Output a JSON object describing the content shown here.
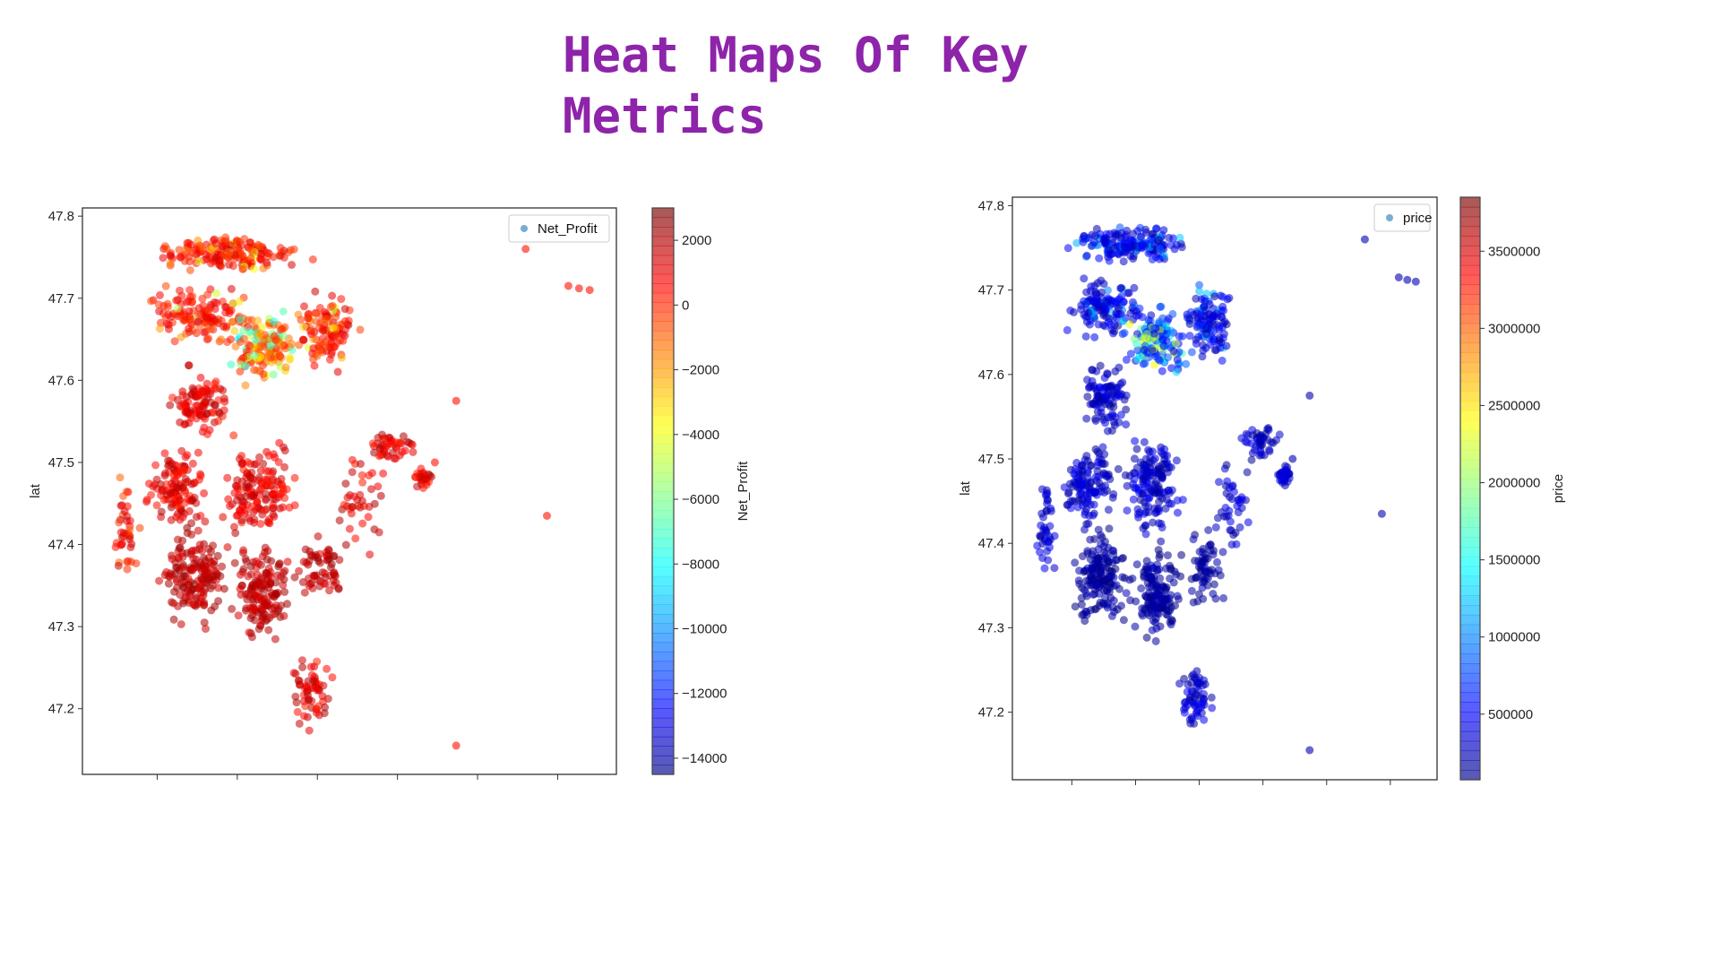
{
  "slide": {
    "title": "Heat Maps Of Key Metrics"
  },
  "colors": {
    "title": "#8e24aa"
  },
  "chart_data": [
    {
      "type": "scatter",
      "colormap": "jet",
      "ylabel": "lat",
      "xlabel": "",
      "ylim": [
        47.12,
        47.81
      ],
      "yticks": [
        47.2,
        47.3,
        47.4,
        47.5,
        47.6,
        47.7,
        47.8
      ],
      "ytick_labels": [
        "47.2",
        "47.3",
        "47.4",
        "47.5",
        "47.6",
        "47.7",
        "47.8"
      ],
      "xtick_count": 6,
      "legend": {
        "label": "Net_Profit",
        "position": "top-right"
      },
      "colorbar": {
        "label": "Net_Profit",
        "range": [
          -14500,
          3000
        ],
        "ticks": [
          2000,
          0,
          -2000,
          -4000,
          -6000,
          -8000,
          -10000,
          -12000,
          -14000
        ],
        "tick_labels": [
          "2000",
          "0",
          "−2000",
          "−4000",
          "−6000",
          "−8000",
          "−10000",
          "−12000",
          "−14000"
        ]
      },
      "distribution": "most points 0 to 2500 (red); central-north cluster -2000 to -12000"
    },
    {
      "type": "scatter",
      "colormap": "jet",
      "ylabel": "lat",
      "xlabel": "",
      "ylim": [
        47.12,
        47.81
      ],
      "yticks": [
        47.2,
        47.3,
        47.4,
        47.5,
        47.6,
        47.7,
        47.8
      ],
      "ytick_labels": [
        "47.2",
        "47.3",
        "47.4",
        "47.5",
        "47.6",
        "47.7",
        "47.8"
      ],
      "xtick_count": 6,
      "legend": {
        "label": "price",
        "position": "top-right"
      },
      "colorbar": {
        "label": "price",
        "range": [
          75000,
          3850000
        ],
        "ticks": [
          500000,
          1000000,
          1500000,
          2000000,
          2500000,
          3000000,
          3500000
        ],
        "tick_labels": [
          "500000",
          "1000000",
          "1500000",
          "2000000",
          "2500000",
          "3000000",
          "3500000"
        ]
      },
      "distribution": "most points 75000 to 700000 (blue); central-north cluster 1000000 to 2500000"
    }
  ]
}
